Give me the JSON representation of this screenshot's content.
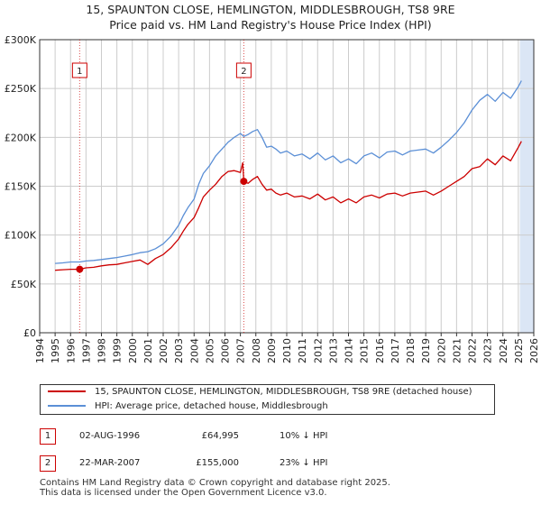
{
  "title": {
    "line1": "15, SPAUNTON CLOSE, HEMLINGTON, MIDDLESBROUGH, TS8 9RE",
    "line2": "Price paid vs. HM Land Registry's House Price Index (HPI)"
  },
  "colors": {
    "property": "#cc0000",
    "hpi": "#5b8fd6",
    "shade": "#dbe6f5",
    "grid": "#cccccc"
  },
  "chart_data": {
    "type": "line",
    "title": "Price paid vs. HM Land Registry's House Price Index (HPI)",
    "xlabel": "",
    "ylabel": "",
    "xlim": [
      1994,
      2026
    ],
    "ylim": [
      0,
      300000
    ],
    "y_ticks": [
      0,
      50000,
      100000,
      150000,
      200000,
      250000,
      300000
    ],
    "y_tick_labels": [
      "£0",
      "£50K",
      "£100K",
      "£150K",
      "£200K",
      "£250K",
      "£300K"
    ],
    "x_ticks": [
      1994,
      1995,
      1996,
      1997,
      1998,
      1999,
      2000,
      2001,
      2002,
      2003,
      2004,
      2005,
      2006,
      2007,
      2008,
      2009,
      2010,
      2011,
      2012,
      2013,
      2014,
      2015,
      2016,
      2017,
      2018,
      2019,
      2020,
      2021,
      2022,
      2023,
      2024,
      2025,
      2026
    ],
    "x_tick_labels": [
      "1994",
      "1995",
      "1996",
      "1997",
      "1998",
      "1999",
      "2000",
      "2001",
      "2002",
      "2003",
      "2004",
      "2005",
      "2006",
      "2007",
      "2008",
      "2009",
      "2010",
      "2011",
      "2012",
      "2013",
      "2014",
      "2015",
      "2016",
      "2017",
      "2018",
      "2019",
      "2020",
      "2021",
      "2022",
      "2023",
      "2024",
      "2025",
      "2026"
    ],
    "grid": true,
    "shaded_period": [
      2025.1,
      2026
    ],
    "series": [
      {
        "name": "15, SPAUNTON CLOSE, HEMLINGTON, MIDDLESBROUGH, TS8 9RE (detached house)",
        "x": [
          1995.0,
          1995.5,
          1996.0,
          1996.59,
          1997.0,
          1997.5,
          1998.0,
          1998.5,
          1999.0,
          1999.5,
          2000.0,
          2000.5,
          2001.0,
          2001.5,
          2002.0,
          2002.5,
          2003.0,
          2003.3,
          2003.6,
          2004.0,
          2004.3,
          2004.6,
          2005.0,
          2005.4,
          2005.8,
          2006.2,
          2006.6,
          2007.0,
          2007.15,
          2007.22,
          2007.5,
          2007.8,
          2008.1,
          2008.4,
          2008.7,
          2009.0,
          2009.3,
          2009.6,
          2010.0,
          2010.5,
          2011.0,
          2011.5,
          2012.0,
          2012.5,
          2013.0,
          2013.5,
          2014.0,
          2014.5,
          2015.0,
          2015.5,
          2016.0,
          2016.5,
          2017.0,
          2017.5,
          2018.0,
          2018.5,
          2019.0,
          2019.5,
          2020.0,
          2020.5,
          2021.0,
          2021.5,
          2022.0,
          2022.5,
          2023.0,
          2023.5,
          2024.0,
          2024.5,
          2025.0,
          2025.2
        ],
        "values": [
          64000,
          64500,
          65000,
          64995,
          66500,
          67000,
          68500,
          69500,
          70000,
          71500,
          73000,
          74500,
          70000,
          76000,
          80000,
          87000,
          96000,
          104000,
          111000,
          118000,
          128000,
          139000,
          146000,
          152000,
          160000,
          165000,
          166000,
          164000,
          174000,
          155000,
          153000,
          157000,
          160000,
          152000,
          146000,
          147000,
          143000,
          141000,
          143000,
          139000,
          140000,
          137000,
          142000,
          136000,
          139000,
          133000,
          137000,
          133000,
          139000,
          141000,
          138000,
          142000,
          143000,
          140000,
          143000,
          144000,
          145000,
          141000,
          145000,
          150000,
          155000,
          160000,
          168000,
          170000,
          178000,
          172000,
          181000,
          176000,
          190000,
          196000
        ]
      },
      {
        "name": "HPI: Average price, detached house, Middlesbrough",
        "x": [
          1995.0,
          1995.5,
          1996.0,
          1996.59,
          1997.0,
          1997.5,
          1998.0,
          1998.5,
          1999.0,
          1999.5,
          2000.0,
          2000.5,
          2001.0,
          2001.5,
          2002.0,
          2002.5,
          2003.0,
          2003.3,
          2003.6,
          2004.0,
          2004.3,
          2004.6,
          2005.0,
          2005.4,
          2005.8,
          2006.2,
          2006.6,
          2007.0,
          2007.22,
          2007.5,
          2007.8,
          2008.1,
          2008.4,
          2008.7,
          2009.0,
          2009.3,
          2009.6,
          2010.0,
          2010.5,
          2011.0,
          2011.5,
          2012.0,
          2012.5,
          2013.0,
          2013.5,
          2014.0,
          2014.5,
          2015.0,
          2015.5,
          2016.0,
          2016.5,
          2017.0,
          2017.5,
          2018.0,
          2018.5,
          2019.0,
          2019.5,
          2020.0,
          2020.5,
          2021.0,
          2021.5,
          2022.0,
          2022.5,
          2023.0,
          2023.5,
          2024.0,
          2024.5,
          2025.0,
          2025.2
        ],
        "values": [
          71000,
          71500,
          72500,
          72500,
          73500,
          74000,
          75000,
          76000,
          77000,
          78500,
          80000,
          82000,
          83000,
          86000,
          91000,
          99000,
          110000,
          120000,
          128000,
          137000,
          152000,
          163000,
          171000,
          181000,
          188000,
          195000,
          200000,
          204000,
          201000,
          203000,
          206000,
          208000,
          200000,
          190000,
          191000,
          188000,
          184000,
          186000,
          181000,
          183000,
          178000,
          184000,
          177000,
          181000,
          174000,
          178000,
          173000,
          181000,
          184000,
          179000,
          185000,
          186000,
          182000,
          186000,
          187000,
          188000,
          184000,
          190000,
          197000,
          205000,
          215000,
          228000,
          238000,
          244000,
          237000,
          246000,
          240000,
          252000,
          258000
        ]
      }
    ],
    "annotations": [
      {
        "label": "1",
        "x": 1996.59,
        "value": 64995
      },
      {
        "label": "2",
        "x": 2007.22,
        "value": 155000
      }
    ]
  },
  "legend": {
    "property_label": "15, SPAUNTON CLOSE, HEMLINGTON, MIDDLESBROUGH, TS8 9RE (detached house)",
    "hpi_label": "HPI: Average price, detached house, Middlesbrough"
  },
  "transactions": [
    {
      "num": "1",
      "date": "02-AUG-1996",
      "price": "£64,995",
      "hpi": "10% ↓ HPI"
    },
    {
      "num": "2",
      "date": "22-MAR-2007",
      "price": "£155,000",
      "hpi": "23% ↓ HPI"
    }
  ],
  "footer": {
    "line1": "Contains HM Land Registry data © Crown copyright and database right 2025.",
    "line2": "This data is licensed under the Open Government Licence v3.0."
  }
}
